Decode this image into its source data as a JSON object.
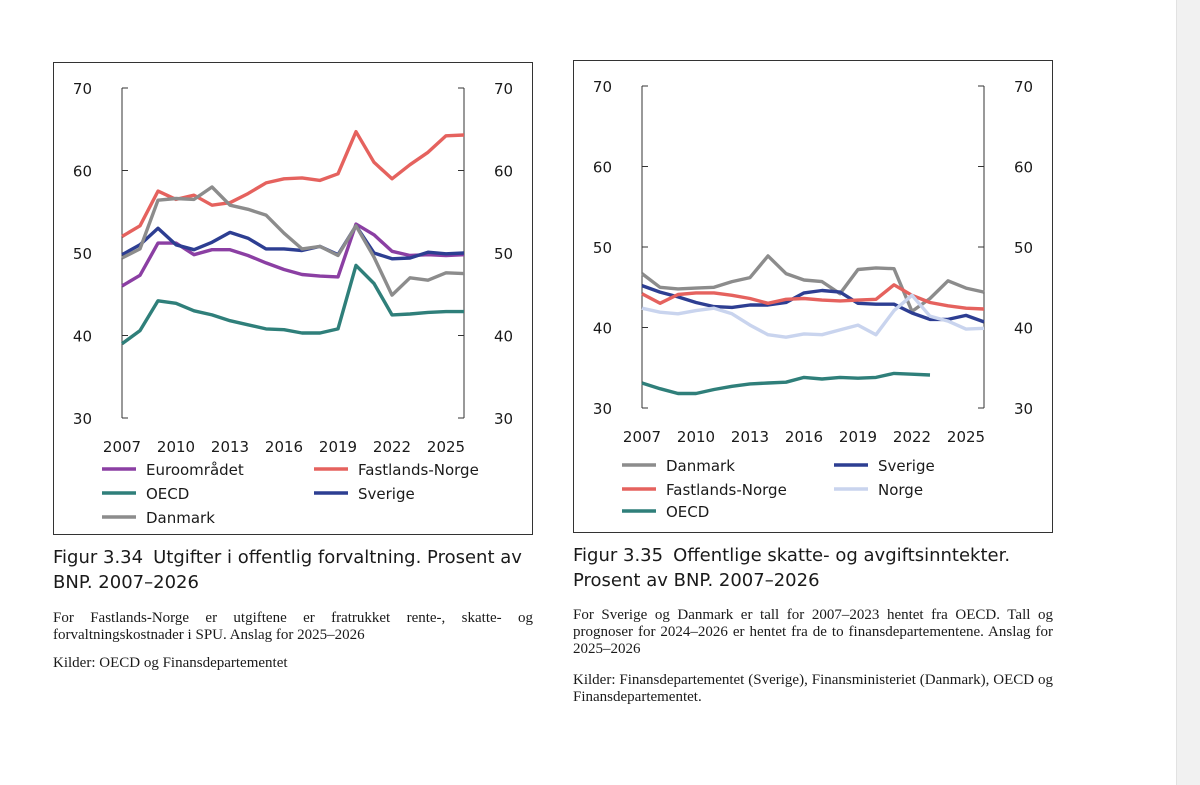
{
  "figures": [
    {
      "id": "fig334",
      "caption_number": "Figur 3.34",
      "caption_title": "Utgifter i offentlig forvaltning. Prosent av BNP. 2007–2026",
      "note": "For Fastlands-Norge er utgiftene er fratrukket rente-, skatte- og forvaltningskostnader i SPU. Anslag for 2025–2026",
      "sources": "Kilder: OECD og Finansdepartementet"
    },
    {
      "id": "fig335",
      "caption_number": "Figur 3.35",
      "caption_title": "Offentlige skatte- og avgiftsinntekter. Prosent av BNP. 2007–2026",
      "note": "For Sverige og Danmark er tall for 2007–2023 hentet fra OECD. Tall og prognoser for 2024–2026 er hentet fra de to finansdepartementene. Anslag for 2025–2026",
      "sources": "Kilder: Finansdepartementet (Sverige), Finansministeriet (Danmark), OECD og Finansdepartementet."
    }
  ],
  "chart_data": [
    {
      "type": "line",
      "title": "Utgifter i offentlig forvaltning. Prosent av BNP. 2007–2026",
      "ylim": [
        30,
        70
      ],
      "yticks": [
        30,
        40,
        50,
        60,
        70
      ],
      "xlim": [
        2007,
        2026
      ],
      "xticks": [
        2007,
        2010,
        2013,
        2016,
        2019,
        2022,
        2025
      ],
      "dual_y_axis": true,
      "legend_placement": "bottom",
      "x": [
        2007,
        2008,
        2009,
        2010,
        2011,
        2012,
        2013,
        2014,
        2015,
        2016,
        2017,
        2018,
        2019,
        2020,
        2021,
        2022,
        2023,
        2024,
        2025,
        2026
      ],
      "series": [
        {
          "name": "Euroområdet",
          "color": "#8b3fa3",
          "values": [
            46.0,
            47.3,
            51.2,
            51.2,
            49.8,
            50.4,
            50.4,
            49.7,
            48.8,
            48.0,
            47.4,
            47.2,
            47.1,
            53.5,
            52.2,
            50.2,
            49.7,
            49.8,
            49.7,
            49.8
          ]
        },
        {
          "name": "Fastlands-Norge",
          "color": "#e5625e",
          "values": [
            52.0,
            53.3,
            57.5,
            56.5,
            57.0,
            55.8,
            56.1,
            57.2,
            58.5,
            59.0,
            59.1,
            58.8,
            59.6,
            64.7,
            61.0,
            59.0,
            60.7,
            62.2,
            64.2,
            64.3
          ]
        },
        {
          "name": "OECD",
          "color": "#2f7f7a",
          "values": [
            39.0,
            40.6,
            44.2,
            43.9,
            43.0,
            42.5,
            41.8,
            41.3,
            40.8,
            40.7,
            40.3,
            40.3,
            40.8,
            48.5,
            46.3,
            42.5,
            42.6,
            42.8,
            42.9,
            42.9
          ]
        },
        {
          "name": "Sverige",
          "color": "#2d3e92",
          "values": [
            49.8,
            51.0,
            53.0,
            51.0,
            50.4,
            51.3,
            52.5,
            51.8,
            50.5,
            50.5,
            50.3,
            50.8,
            49.8,
            53.3,
            50.0,
            49.3,
            49.4,
            50.1,
            49.9,
            50.0
          ]
        },
        {
          "name": "Danmark",
          "color": "#8c8c8c",
          "values": [
            49.4,
            50.5,
            56.4,
            56.6,
            56.5,
            58.0,
            55.8,
            55.3,
            54.6,
            52.4,
            50.5,
            50.8,
            49.7,
            53.3,
            49.5,
            44.9,
            47.0,
            46.7,
            47.6,
            47.5
          ]
        }
      ]
    },
    {
      "type": "line",
      "title": "Offentlige skatte- og avgiftsinntekter. Prosent av BNP. 2007–2026",
      "ylim": [
        30,
        70
      ],
      "yticks": [
        30,
        40,
        50,
        60,
        70
      ],
      "xlim": [
        2007,
        2026
      ],
      "xticks": [
        2007,
        2010,
        2013,
        2016,
        2019,
        2022,
        2025
      ],
      "dual_y_axis": true,
      "legend_placement": "bottom",
      "x": [
        2007,
        2008,
        2009,
        2010,
        2011,
        2012,
        2013,
        2014,
        2015,
        2016,
        2017,
        2018,
        2019,
        2020,
        2021,
        2022,
        2023,
        2024,
        2025,
        2026
      ],
      "series": [
        {
          "name": "Danmark",
          "color": "#8c8c8c",
          "values": [
            46.7,
            45.0,
            44.8,
            44.9,
            45.0,
            45.7,
            46.2,
            48.9,
            46.7,
            45.9,
            45.7,
            44.2,
            47.2,
            47.4,
            47.3,
            42.0,
            43.6,
            45.8,
            44.9,
            44.4
          ]
        },
        {
          "name": "Sverige",
          "color": "#2d3e92",
          "values": [
            45.2,
            44.4,
            43.8,
            43.1,
            42.6,
            42.5,
            42.8,
            42.8,
            43.1,
            44.3,
            44.6,
            44.4,
            43.0,
            42.9,
            42.9,
            41.8,
            41.0,
            41.0,
            41.5,
            40.7
          ]
        },
        {
          "name": "Fastlands-Norge",
          "color": "#e5625e",
          "values": [
            44.2,
            43.0,
            44.1,
            44.3,
            44.3,
            44.0,
            43.6,
            43.0,
            43.5,
            43.6,
            43.4,
            43.3,
            43.4,
            43.5,
            45.3,
            44.0,
            43.1,
            42.7,
            42.4,
            42.3
          ]
        },
        {
          "name": "Norge",
          "color": "#c9d4ee",
          "values": [
            42.4,
            41.9,
            41.7,
            42.1,
            42.4,
            41.7,
            40.3,
            39.1,
            38.8,
            39.2,
            39.1,
            39.7,
            40.3,
            39.1,
            42.1,
            44.0,
            41.4,
            40.8,
            39.8,
            39.9
          ]
        },
        {
          "name": "OECD",
          "color": "#2f7f7a",
          "values": [
            33.1,
            32.4,
            31.8,
            31.8,
            32.3,
            32.7,
            33.0,
            33.1,
            33.2,
            33.8,
            33.6,
            33.8,
            33.7,
            33.8,
            34.3,
            34.2,
            34.1,
            null,
            null,
            null
          ]
        }
      ]
    }
  ]
}
